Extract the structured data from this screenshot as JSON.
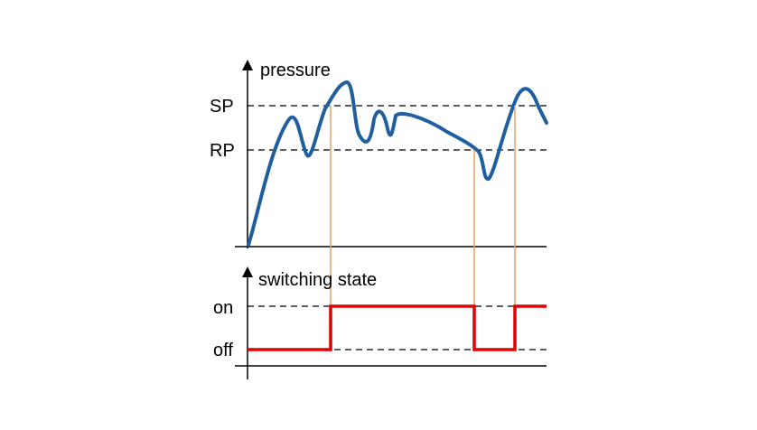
{
  "top_plot": {
    "axis_label": "pressure",
    "threshold_labels": {
      "sp": "SP",
      "rp": "RP"
    }
  },
  "bottom_plot": {
    "axis_label": "switching state",
    "state_labels": {
      "on": "on",
      "off": "off"
    }
  },
  "colors": {
    "pressure_curve": "#1f5fa0",
    "switching_signal": "#e00000",
    "transition_lines": "#e8a060",
    "axes": "#000000",
    "dashed_lines": "#000000"
  }
}
